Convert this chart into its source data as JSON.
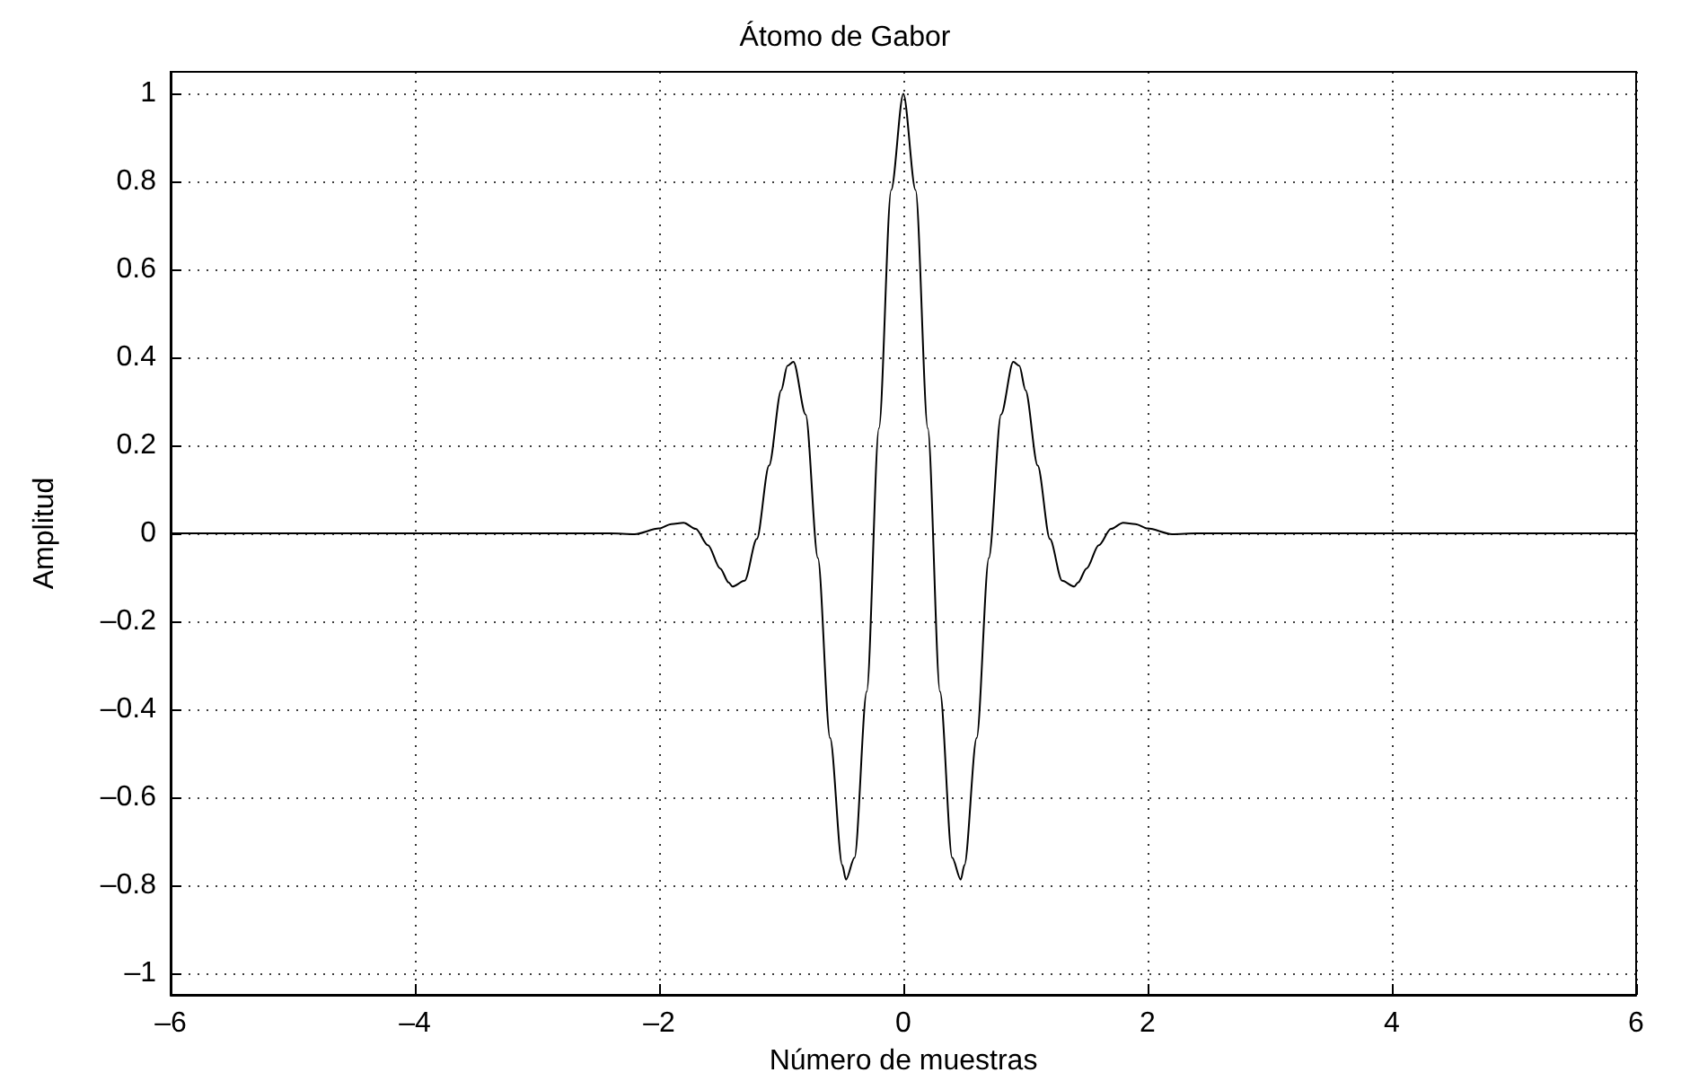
{
  "chart_data": {
    "type": "line",
    "title": "Átomo de Gabor",
    "xlabel": "Número de muestras",
    "ylabel": "Amplitud",
    "x": [
      -6,
      -2.4,
      -2.2,
      -2.0,
      -1.9,
      -1.8,
      -1.7,
      -1.6,
      -1.5,
      -1.43,
      -1.4,
      -1.3,
      -1.2,
      -1.1,
      -1.0,
      -0.95,
      -0.9,
      -0.8,
      -0.7,
      -0.6,
      -0.5,
      -0.47,
      -0.4,
      -0.3,
      -0.2,
      -0.1,
      0,
      0.1,
      0.2,
      0.3,
      0.4,
      0.47,
      0.5,
      0.6,
      0.7,
      0.8,
      0.9,
      0.95,
      1.0,
      1.1,
      1.2,
      1.3,
      1.4,
      1.43,
      1.5,
      1.6,
      1.7,
      1.8,
      1.9,
      2.0,
      2.2,
      2.4,
      6
    ],
    "series": [
      {
        "color": "#000000",
        "values": [
          0,
          0,
          -0.002,
          0.011,
          0.021,
          0.024,
          0.01,
          -0.027,
          -0.08,
          -0.112,
          -0.121,
          -0.108,
          -0.013,
          0.154,
          0.326,
          0.381,
          0.39,
          0.27,
          -0.056,
          -0.466,
          -0.755,
          -0.788,
          -0.738,
          -0.36,
          0.239,
          0.781,
          1,
          0.781,
          0.239,
          -0.36,
          -0.738,
          -0.788,
          -0.755,
          -0.466,
          -0.056,
          0.27,
          0.39,
          0.381,
          0.326,
          0.154,
          -0.013,
          -0.108,
          -0.121,
          -0.112,
          -0.08,
          -0.027,
          0.01,
          0.024,
          0.021,
          0.011,
          -0.002,
          0,
          0
        ]
      }
    ],
    "xlim": [
      -6,
      6
    ],
    "xticks": [
      {
        "value": -6,
        "label": "–6"
      },
      {
        "value": -4,
        "label": "–4"
      },
      {
        "value": -2,
        "label": "–2"
      },
      0,
      2,
      4,
      6
    ],
    "ylim": [
      -1.05,
      1.05
    ],
    "yticks": [
      {
        "value": -1,
        "label": "–1"
      },
      {
        "value": -0.8,
        "label": "–0.8"
      },
      {
        "value": -0.6,
        "label": "–0.6"
      },
      {
        "value": -0.4,
        "label": "–0.4"
      },
      {
        "value": -0.2,
        "label": "–0.2"
      },
      0,
      0.2,
      0.4,
      0.6,
      0.8,
      1
    ],
    "grid": true,
    "marker": "none",
    "line_style": "solid"
  }
}
